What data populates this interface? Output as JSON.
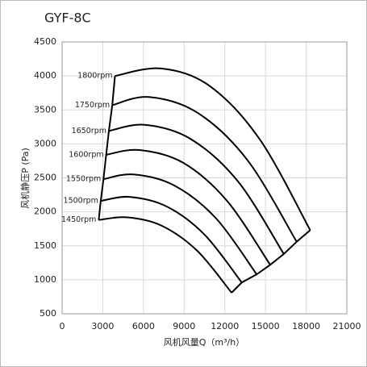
{
  "chart_data": {
    "type": "line",
    "title": "GYF-8C",
    "x_label": "风机风量Q（m³/h）",
    "y_label": "风机静压P (Pa)",
    "xlim": [
      0,
      21000
    ],
    "xticks": [
      0,
      3000,
      6000,
      9000,
      12000,
      15000,
      18000,
      21000
    ],
    "ylim": [
      500,
      4500
    ],
    "yticks": [
      500,
      1000,
      1500,
      2000,
      2500,
      3000,
      3500,
      4000,
      4500
    ],
    "grid": true,
    "series": [
      {
        "name": "1800rpm",
        "color": "#000000",
        "x": [
          3900,
          7300,
          10900,
          14600,
          18300
        ],
        "values": [
          4000,
          4110,
          3850,
          3060,
          1730
        ]
      },
      {
        "name": "1750rpm",
        "color": "#000000",
        "x": [
          3700,
          6400,
          10000,
          13700,
          17300
        ],
        "values": [
          3570,
          3690,
          3456,
          2753,
          1560
        ]
      },
      {
        "name": "1650rpm",
        "color": "#000000",
        "x": [
          3450,
          6100,
          9500,
          13000,
          16350
        ],
        "values": [
          3190,
          3280,
          3070,
          2440,
          1380
        ]
      },
      {
        "name": "1600rpm",
        "color": "#000000",
        "x": [
          3250,
          5700,
          8900,
          12150,
          15350
        ],
        "values": [
          2840,
          2910,
          2725,
          2165,
          1220
        ]
      },
      {
        "name": "1550rpm",
        "color": "#000000",
        "x": [
          3050,
          5250,
          8250,
          11350,
          14350
        ],
        "values": [
          2480,
          2550,
          2390,
          1905,
          1080
        ]
      },
      {
        "name": "1500rpm",
        "color": "#000000",
        "x": [
          2850,
          4950,
          7700,
          10500,
          13250
        ],
        "values": [
          2160,
          2220,
          2080,
          1665,
          960
        ]
      },
      {
        "name": "1450rpm",
        "color": "#000000",
        "x": [
          2700,
          4750,
          7300,
          9950,
          12500
        ],
        "values": [
          1880,
          1920,
          1800,
          1430,
          810
        ]
      }
    ]
  }
}
